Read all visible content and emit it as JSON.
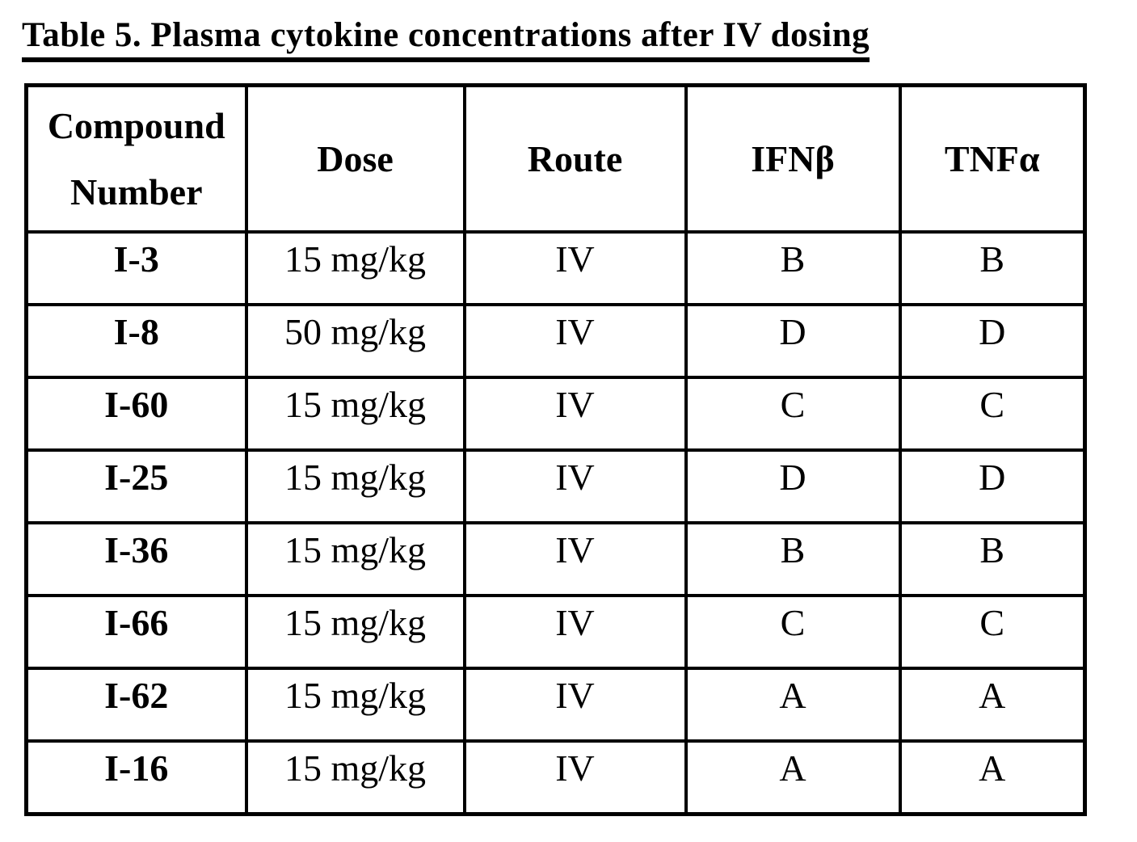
{
  "page": {
    "title": "Table 5. Plasma cytokine concentrations after IV dosing"
  },
  "table": {
    "headers": [
      "Compound Number",
      "Dose",
      "Route",
      "IFNβ",
      "TNFα"
    ],
    "rows": [
      [
        "I-3",
        "15 mg/kg",
        "IV",
        "B",
        "B"
      ],
      [
        "I-8",
        "50 mg/kg",
        "IV",
        "D",
        "D"
      ],
      [
        "I-60",
        "15 mg/kg",
        "IV",
        "C",
        "C"
      ],
      [
        "I-25",
        "15 mg/kg",
        "IV",
        "D",
        "D"
      ],
      [
        "I-36",
        "15 mg/kg",
        "IV",
        "B",
        "B"
      ],
      [
        "I-66",
        "15 mg/kg",
        "IV",
        "C",
        "C"
      ],
      [
        "I-62",
        "15 mg/kg",
        "IV",
        "A",
        "A"
      ],
      [
        "I-16",
        "15 mg/kg",
        "IV",
        "A",
        "A"
      ]
    ],
    "colors": {
      "border": "#000000",
      "text": "#000000",
      "background": "#ffffff"
    }
  }
}
